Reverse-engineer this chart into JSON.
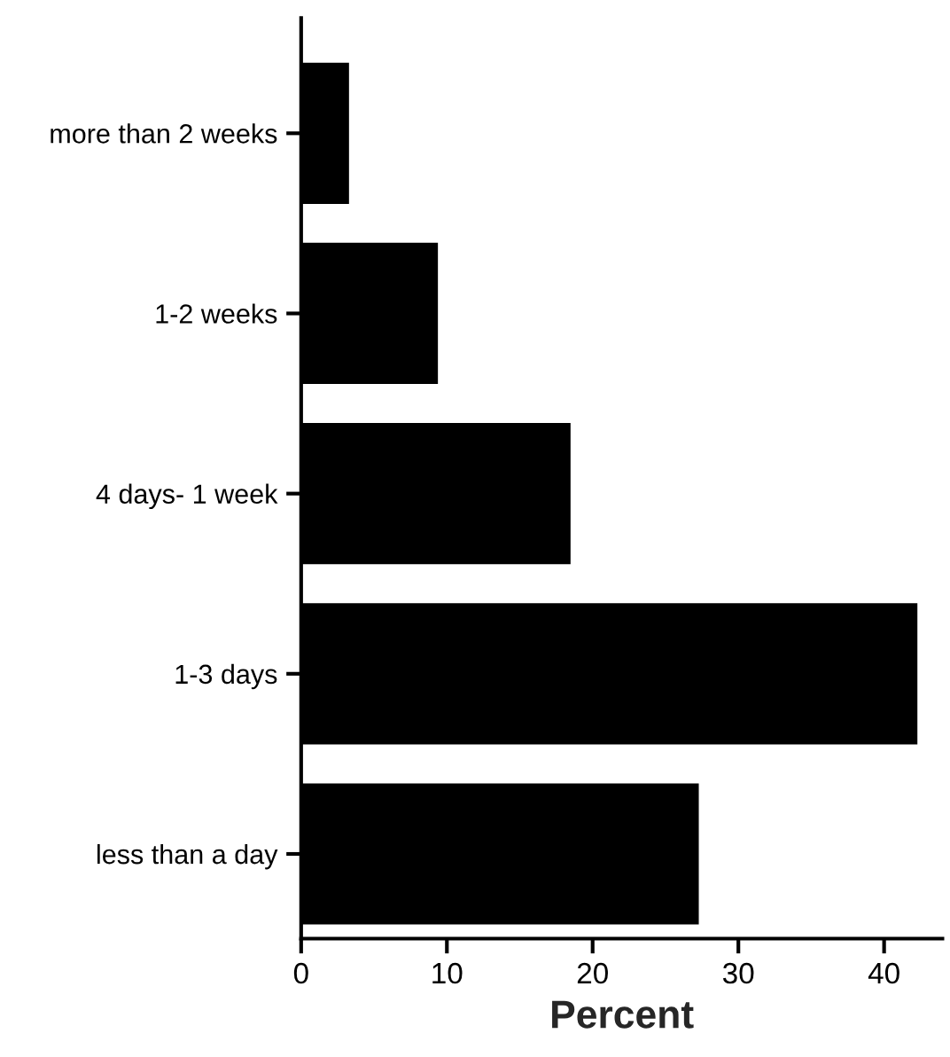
{
  "chart_data": {
    "type": "bar",
    "orientation": "horizontal",
    "xlabel": "Percent",
    "categories": [
      "more than 2 weeks",
      "1-2 weeks",
      "4 days- 1 week",
      "1-3 days",
      "less than a day"
    ],
    "values": [
      3.2,
      9.3,
      18.4,
      42.2,
      27.2
    ],
    "color": "#000000",
    "xlim": [
      0,
      44
    ],
    "xticks": [
      0,
      10,
      20,
      30,
      40
    ],
    "grid": false,
    "legend": false
  }
}
